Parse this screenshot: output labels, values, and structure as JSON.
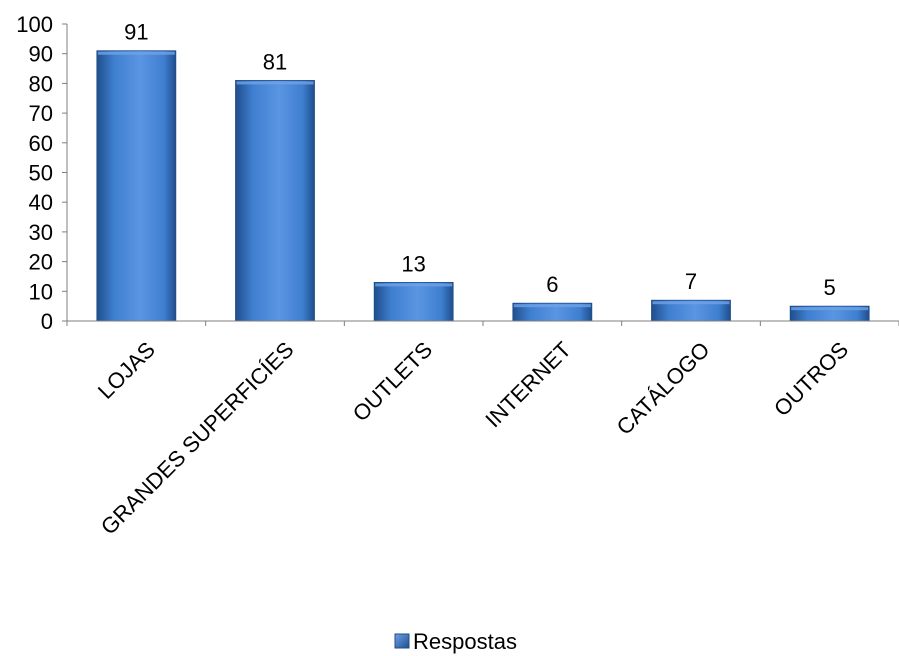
{
  "chart_data": {
    "type": "bar",
    "categories": [
      "LOJAS",
      "GRANDES SUPERFICÍES",
      "OUTLETS",
      "INTERNET",
      "CATÁLOGO",
      "OUTROS"
    ],
    "series": [
      {
        "name": "Respostas",
        "values": [
          91,
          81,
          13,
          6,
          7,
          5
        ]
      }
    ],
    "ylim": [
      0,
      100
    ],
    "yticks": [
      0,
      10,
      20,
      30,
      40,
      50,
      60,
      70,
      80,
      90,
      100
    ],
    "xlabel": "",
    "ylabel": "",
    "grid": false,
    "data_labels": true,
    "legend_position": "bottom",
    "colors": {
      "bar": "#3F7FD0",
      "bar_dark": "#1F4E8C",
      "bar_light": "#6FA2E6",
      "axis": "#7f7f7f"
    }
  }
}
